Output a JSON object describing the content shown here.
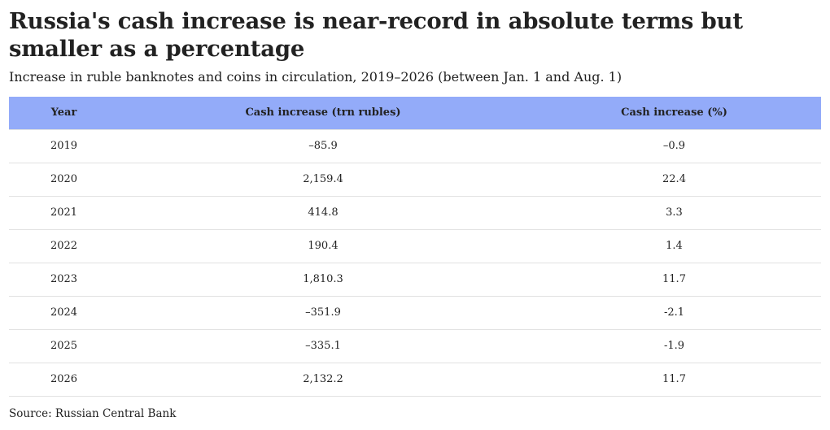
{
  "title": "Russia's cash increase is near-record in absolute terms but smaller as a percentage",
  "subtitle": "Increase in ruble banknotes and coins in circulation, 2019–2026 (between Jan. 1 and Aug. 1)",
  "source": "Source: Russian Central Bank",
  "colors": {
    "header_bg": "#93abf9",
    "row_rule": "#e2e2e2",
    "text": "#222222"
  },
  "chart_data": {
    "type": "table",
    "title": "Russia's cash increase is near-record in absolute terms but smaller as a percentage",
    "subtitle": "Increase in ruble banknotes and coins in circulation, 2019–2026 (between Jan. 1 and Aug. 1)",
    "columns": [
      "Year",
      "Cash increase (trn rubles)",
      "Cash increase (%)"
    ],
    "rows": [
      [
        "2019",
        "–85.9",
        "–0.9"
      ],
      [
        "2020",
        "2,159.4",
        "22.4"
      ],
      [
        "2021",
        "414.8",
        "3.3"
      ],
      [
        "2022",
        "190.4",
        "1.4"
      ],
      [
        "2023",
        "1,810.3",
        "11.7"
      ],
      [
        "2024",
        "–351.9",
        "-2.1"
      ],
      [
        "2025",
        "–335.1",
        "-1.9"
      ],
      [
        "2026",
        "2,132.2",
        "11.7"
      ]
    ]
  }
}
